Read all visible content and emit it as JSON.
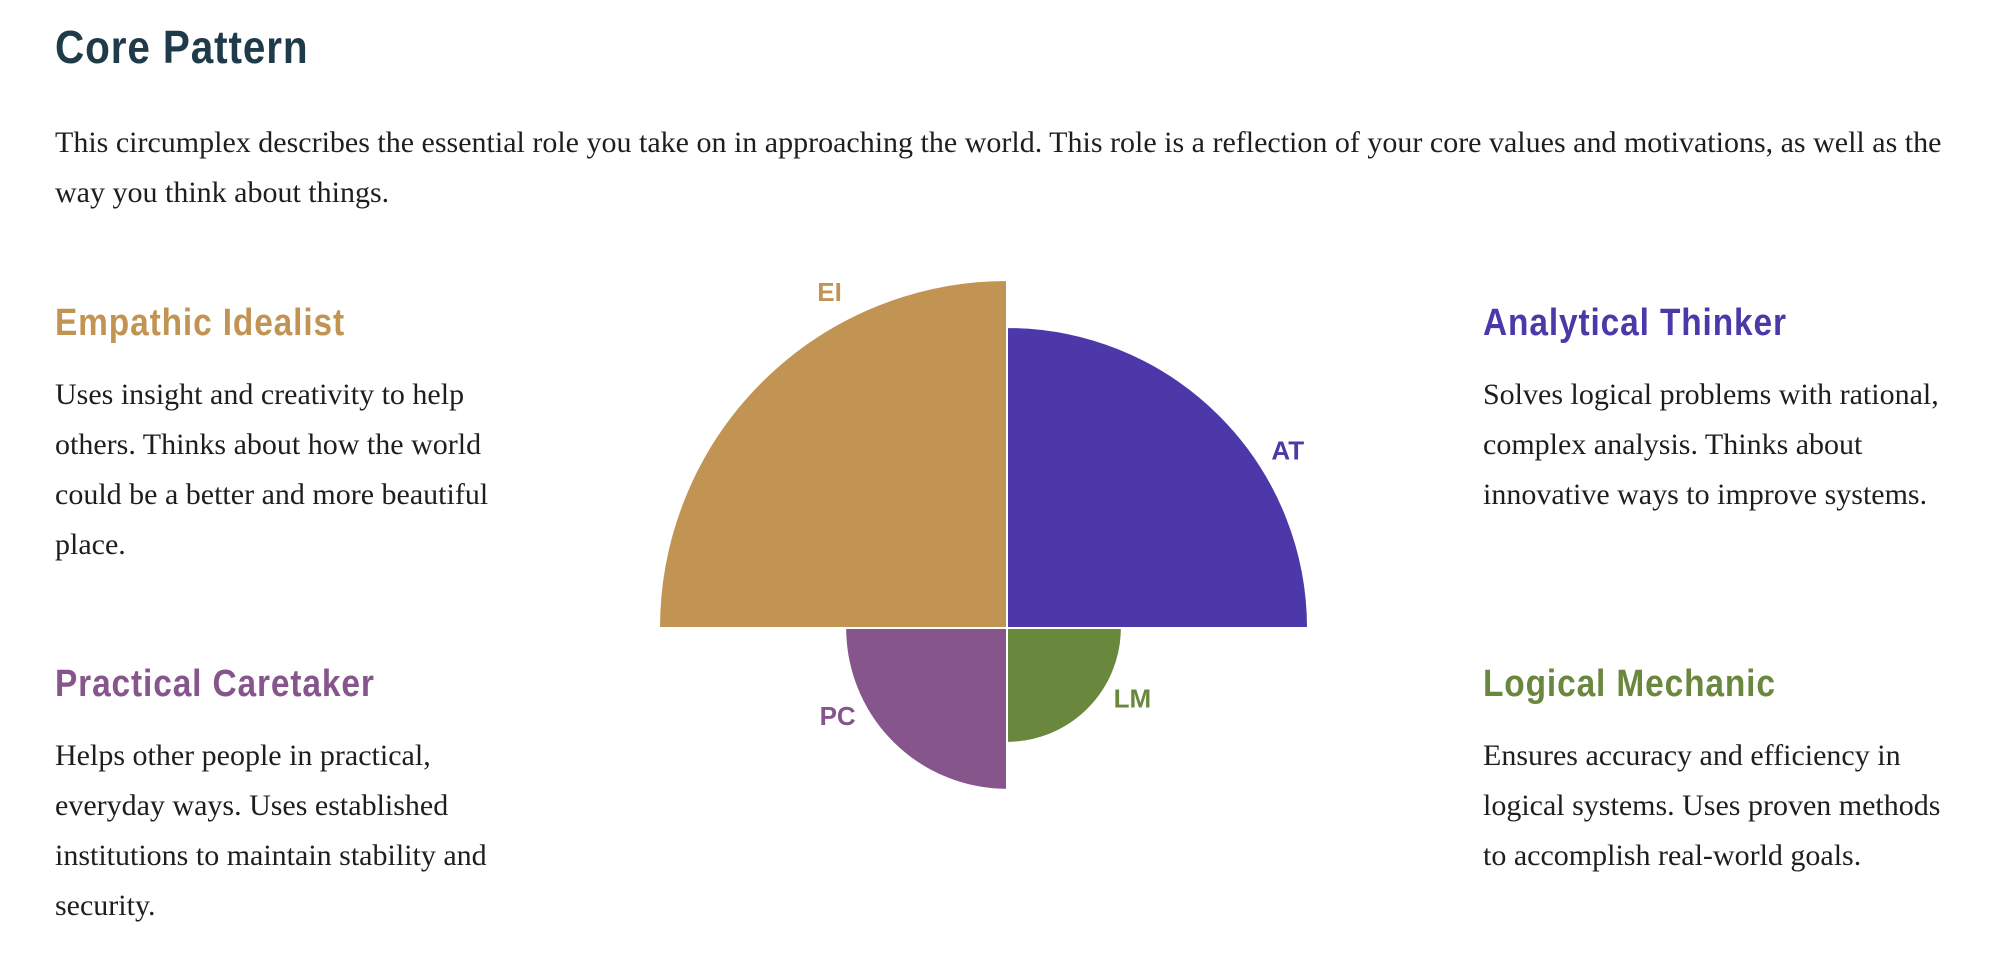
{
  "page": {
    "title": "Core Pattern",
    "intro": "This circumplex describes the essential role you take on in approaching the world. This role is a reflection of your core values and motivations, as well as the way you think about things."
  },
  "roles": [
    {
      "id": "ei",
      "title": "Empathic Idealist",
      "description": "Uses insight and creativity to help others. Thinks about how the world could be a better and more beautiful place.",
      "color": "#c29453"
    },
    {
      "id": "at",
      "title": "Analytical Thinker",
      "description": "Solves logical problems with rational, complex analysis. Thinks about innovative ways to improve systems.",
      "color": "#4d38a9"
    },
    {
      "id": "pc",
      "title": "Practical Caretaker",
      "description": "Helps other people in practical, everyday ways. Uses established institutions to maintain stability and security.",
      "color": "#85558b"
    },
    {
      "id": "lm",
      "title": "Logical Mechanic",
      "description": "Ensures accuracy and efficiency in logical systems. Uses proven methods to accomplish real-world goals.",
      "color": "#6a873e"
    }
  ],
  "chart_data": {
    "type": "polar-area",
    "max_value": 100,
    "segments": [
      {
        "label": "EI",
        "quadrant": "top-left",
        "value": 100,
        "color": "#c29453"
      },
      {
        "label": "AT",
        "quadrant": "top-right",
        "value": 86.5,
        "color": "#4d38a9"
      },
      {
        "label": "PC",
        "quadrant": "bottom-left",
        "value": 46.5,
        "color": "#85558b"
      },
      {
        "label": "LM",
        "quadrant": "bottom-right",
        "value": 33,
        "color": "#6a873e"
      }
    ]
  }
}
